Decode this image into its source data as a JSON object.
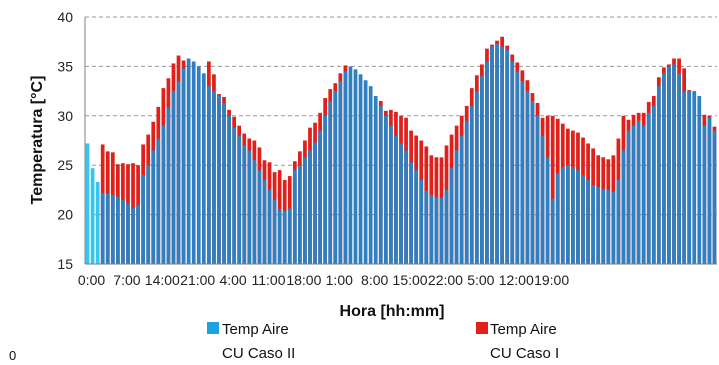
{
  "chart_data": {
    "type": "bar",
    "title": "",
    "xlabel": "Hora [hh:mm]",
    "ylabel": "Temperatura [°C]",
    "ylim": [
      15,
      40
    ],
    "yticks": [
      "15",
      "20",
      "25",
      "30",
      "35",
      "40"
    ],
    "xtick_labels": [
      "0:00",
      "7:00",
      "14:00",
      "21:00",
      "4:00",
      "11:00",
      "18:00",
      "1:00",
      "8:00",
      "15:00",
      "22:00",
      "5:00",
      "12:00",
      "19:00"
    ],
    "grid": "horizontal dashed",
    "legend_position": "bottom",
    "corner_label": "0",
    "colors": {
      "caso_ii": "#2f7fc1",
      "caso_ii_legend": "#1aa3e0",
      "caso_ii_first": "#38c4ec",
      "caso_i": "#e0211b"
    },
    "series": [
      {
        "name_line1": "Temp Aire",
        "name_line2": "CU Caso II",
        "values": [
          27.2,
          24.7,
          23.3,
          22.2,
          22.1,
          22.0,
          21.8,
          21.5,
          21.1,
          20.7,
          21.0,
          24.0,
          25.0,
          26.5,
          27.7,
          29.0,
          30.8,
          32.5,
          33.5,
          34.8,
          35.8,
          35.5,
          35.0,
          34.3,
          33.0,
          32.5,
          32.0,
          31.3,
          30.0,
          28.8,
          28.0,
          27.0,
          26.5,
          25.5,
          24.5,
          23.5,
          22.5,
          21.5,
          20.5,
          20.4,
          20.6,
          24.5,
          25.0,
          25.8,
          26.5,
          27.3,
          28.5,
          30.0,
          31.5,
          32.5,
          33.5,
          34.5,
          35.0,
          34.7,
          34.2,
          33.6,
          33.0,
          32.0,
          31.0,
          30.0,
          29.0,
          28.0,
          27.2,
          26.5,
          25.3,
          24.5,
          23.5,
          22.4,
          22.0,
          21.8,
          21.7,
          22.5,
          24.7,
          26.5,
          28.0,
          29.5,
          31.0,
          32.5,
          34.0,
          35.5,
          37.0,
          37.3,
          37.0,
          36.7,
          35.5,
          34.5,
          33.5,
          32.5,
          31.5,
          30.0,
          28.0,
          25.8,
          21.6,
          24.2,
          24.8,
          25.0,
          24.8,
          24.5,
          24.0,
          23.5,
          23.0,
          22.8,
          22.6,
          22.5,
          22.3,
          23.5,
          26.5,
          28.5,
          29.0,
          29.5,
          29.0,
          30.3,
          31.0,
          33.0,
          34.3,
          35.0,
          35.2,
          34.3,
          32.5,
          32.5,
          32.5,
          32.0,
          29.0,
          29.8,
          28.5
        ]
      },
      {
        "name_line1": "Temp Aire",
        "name_line2": "CU Caso I",
        "values": [
          27.2,
          24.7,
          23.3,
          27.1,
          26.4,
          26.3,
          25.1,
          25.2,
          25.1,
          25.2,
          25.0,
          27.1,
          28.1,
          29.4,
          30.9,
          32.8,
          33.8,
          35.3,
          36.1,
          35.6,
          35.6,
          33.9,
          34.2,
          33.5,
          35.5,
          34.2,
          32.2,
          31.9,
          30.6,
          29.9,
          29.0,
          28.2,
          27.7,
          27.5,
          26.8,
          25.5,
          25.3,
          24.3,
          24.5,
          23.5,
          23.9,
          25.4,
          26.4,
          27.5,
          28.8,
          29.3,
          30.3,
          31.8,
          32.7,
          33.3,
          34.3,
          35.1,
          34.3,
          33.6,
          33.1,
          32.6,
          32.0,
          31.7,
          31.5,
          30.5,
          30.6,
          30.4,
          30.0,
          29.8,
          28.5,
          28.0,
          27.5,
          26.9,
          26.0,
          25.8,
          25.8,
          27.0,
          28.1,
          29.0,
          30.0,
          31.0,
          32.8,
          34.1,
          35.2,
          36.8,
          37.2,
          37.6,
          38.0,
          37.1,
          36.2,
          35.4,
          34.6,
          33.6,
          32.3,
          31.3,
          29.8,
          30.0,
          30.0,
          29.7,
          29.2,
          28.7,
          28.5,
          28.3,
          27.8,
          27.2,
          26.7,
          26.0,
          25.8,
          25.6,
          26.0,
          27.7,
          30.0,
          29.6,
          30.1,
          30.3,
          30.3,
          31.4,
          32.0,
          33.9,
          34.9,
          35.2,
          35.8,
          35.8,
          34.8,
          32.6,
          32.4,
          31.4,
          30.1,
          30.0,
          28.9
        ]
      }
    ]
  }
}
